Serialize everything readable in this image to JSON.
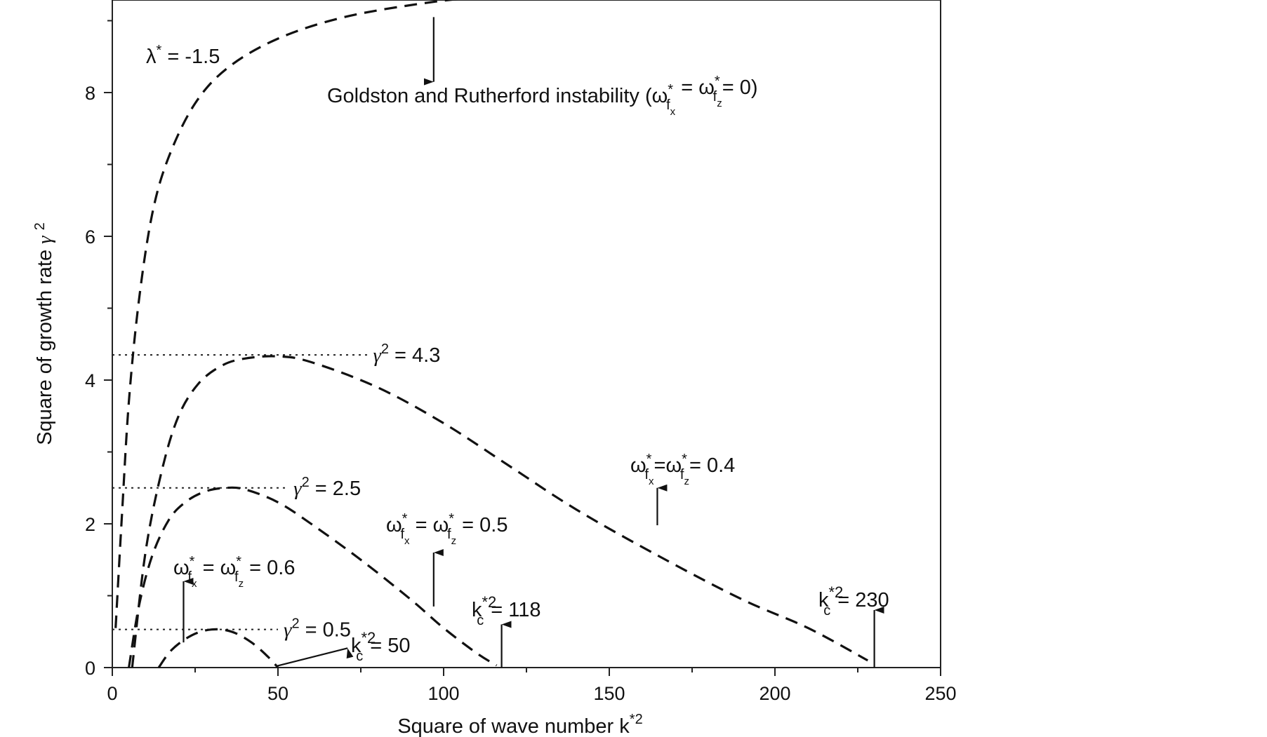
{
  "chart_data": {
    "type": "line",
    "title": "",
    "xlabel": "Square of wave number  k*2",
    "ylabel": "Square of growth rate γ 2",
    "xlim": [
      0,
      250
    ],
    "ylim": [
      0,
      9.3
    ],
    "x_ticks": [
      0,
      50,
      100,
      150,
      200,
      250
    ],
    "y_ticks": [
      0,
      2,
      4,
      6,
      8
    ],
    "grid": false,
    "legend": "none",
    "series": [
      {
        "style": "dashed",
        "points": [
          [
            1,
            0.55
          ],
          [
            3,
            2.2
          ],
          [
            5,
            3.7
          ],
          [
            8,
            5.1
          ],
          [
            12,
            6.3
          ],
          [
            17,
            7.1
          ],
          [
            25,
            7.85
          ],
          [
            35,
            8.35
          ],
          [
            50,
            8.75
          ],
          [
            70,
            9.05
          ],
          [
            95,
            9.25
          ],
          [
            115,
            9.35
          ],
          [
            125,
            9.4
          ]
        ]
      },
      {
        "style": "dashed",
        "points": [
          [
            6,
            0
          ],
          [
            10,
            1.6
          ],
          [
            15,
            2.75
          ],
          [
            20,
            3.5
          ],
          [
            26,
            3.95
          ],
          [
            33,
            4.2
          ],
          [
            40,
            4.3
          ],
          [
            50,
            4.33
          ],
          [
            60,
            4.25
          ],
          [
            80,
            3.9
          ],
          [
            100,
            3.4
          ],
          [
            120,
            2.8
          ],
          [
            140,
            2.2
          ],
          [
            165,
            1.55
          ],
          [
            190,
            0.95
          ],
          [
            210,
            0.55
          ],
          [
            228,
            0.1
          ]
        ]
      },
      {
        "style": "dashed",
        "points": [
          [
            5,
            0
          ],
          [
            8,
            0.85
          ],
          [
            12,
            1.55
          ],
          [
            17,
            2.05
          ],
          [
            22,
            2.3
          ],
          [
            28,
            2.45
          ],
          [
            34,
            2.5
          ],
          [
            40,
            2.48
          ],
          [
            50,
            2.3
          ],
          [
            60,
            2.0
          ],
          [
            75,
            1.5
          ],
          [
            90,
            0.95
          ],
          [
            100,
            0.55
          ],
          [
            110,
            0.2
          ],
          [
            116,
            0.03
          ]
        ]
      },
      {
        "style": "dashed",
        "points": [
          [
            14,
            0
          ],
          [
            18,
            0.25
          ],
          [
            24,
            0.45
          ],
          [
            30,
            0.53
          ],
          [
            36,
            0.5
          ],
          [
            42,
            0.35
          ],
          [
            47,
            0.15
          ],
          [
            50,
            0.0
          ]
        ]
      }
    ],
    "reference_lines": [
      {
        "y": 4.35,
        "x_from": 0,
        "x_to": 77,
        "label_base": "γ",
        "label_exp": "2",
        "label_rest": " = 4.3"
      },
      {
        "y": 2.5,
        "x_from": 0,
        "x_to": 53,
        "label_base": "γ",
        "label_exp": "2",
        "label_rest": " = 2.5"
      },
      {
        "y": 0.53,
        "x_from": 0,
        "x_to": 50,
        "label_base": "γ",
        "label_exp": "2",
        "label_rest": " = 0.5"
      }
    ],
    "annotations": {
      "lambda": {
        "base": "λ",
        "exp": "*",
        "rest": " = -1.5"
      },
      "gr_instability": {
        "text": "Goldston and Rutherford instability (",
        "w": "ω",
        "star": "*",
        "f": "f",
        "x": "x",
        "z": "z",
        "eq": " = ",
        "zero": "= 0)"
      },
      "omega_04": {
        "w": "ω",
        "star": "*",
        "f": "f",
        "x": "x",
        "z": "z",
        "eq": "=",
        "value": "= 0.4"
      },
      "omega_05": {
        "w": "ω",
        "star": "*",
        "f": "f",
        "x": "x",
        "z": "z",
        "eq": " = ",
        "value": " = 0.5"
      },
      "omega_06": {
        "w": "ω",
        "star": "*",
        "f": "f",
        "x": "x",
        "z": "z",
        "eq": " = ",
        "value": " = 0.6"
      },
      "kc_230": {
        "k": "k",
        "c": "c",
        "exp": "*2",
        "value": "= 230"
      },
      "kc_118": {
        "k": "k",
        "c": "c",
        "exp": "*2",
        "value": "= 118"
      },
      "kc_50": {
        "k": "k",
        "c": "c",
        "exp": "*2",
        "value": "= 50"
      }
    }
  }
}
